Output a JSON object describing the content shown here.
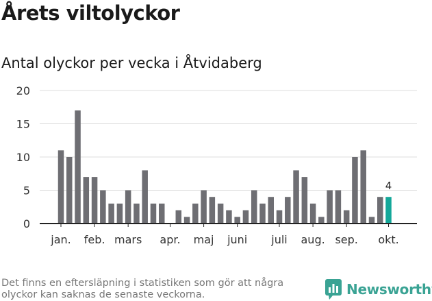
{
  "title": "Årets viltolyckor",
  "subtitle": "Antal olyckor per vecka i Åtvidaberg",
  "footnote": "Det finns en eftersläpning i statistiken som gör att några olyckor kan saknas de senaste veckorna.",
  "brand": {
    "name": "Newsworthy",
    "color": "#3aa394"
  },
  "colors": {
    "bar": "#6e6e73",
    "highlight": "#14a89a",
    "grid": "#dddddd",
    "axis": "#222222"
  },
  "chart_data": {
    "type": "bar",
    "x": [
      1,
      2,
      3,
      4,
      5,
      6,
      7,
      8,
      9,
      10,
      11,
      12,
      13,
      14,
      15,
      16,
      17,
      18,
      19,
      20,
      21,
      22,
      23,
      24,
      25,
      26,
      27,
      28,
      29,
      30,
      31,
      32,
      33,
      34,
      35,
      36,
      37,
      38,
      39,
      40
    ],
    "values": [
      11,
      10,
      17,
      7,
      7,
      5,
      3,
      3,
      5,
      3,
      8,
      3,
      3,
      0,
      2,
      1,
      3,
      5,
      4,
      3,
      2,
      1,
      2,
      5,
      3,
      4,
      2,
      4,
      8,
      7,
      3,
      1,
      5,
      5,
      2,
      10,
      11,
      1,
      4,
      4
    ],
    "highlight_index": 39,
    "highlight_label": "4",
    "ylim": [
      0,
      20
    ],
    "yticks": [
      0,
      5,
      10,
      15,
      20
    ],
    "xtick_labels": [
      {
        "label": "jan.",
        "at": 1
      },
      {
        "label": "feb.",
        "at": 5
      },
      {
        "label": "mars",
        "at": 9
      },
      {
        "label": "apr.",
        "at": 14
      },
      {
        "label": "maj",
        "at": 18
      },
      {
        "label": "juni",
        "at": 22
      },
      {
        "label": "juli",
        "at": 27
      },
      {
        "label": "aug.",
        "at": 31
      },
      {
        "label": "sep.",
        "at": 35
      },
      {
        "label": "okt.",
        "at": 40
      }
    ],
    "grid": true
  }
}
